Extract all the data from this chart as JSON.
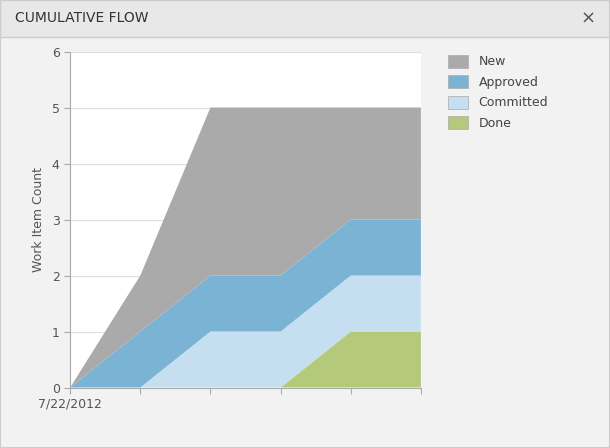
{
  "title": "CUMULATIVE FLOW",
  "ylabel": "Work Item Count",
  "xlabel_date": "7/22/2012",
  "background_color": "#f2f2f2",
  "panel_background": "#ffffff",
  "border_color": "#cccccc",
  "x_points": [
    0,
    1,
    2,
    3,
    4,
    5
  ],
  "done": [
    0,
    0,
    0,
    0,
    1,
    1
  ],
  "committed": [
    0,
    0,
    1,
    1,
    2,
    2
  ],
  "approved": [
    0,
    1,
    2,
    2,
    3,
    3
  ],
  "new_total": [
    0,
    2,
    5,
    5,
    5,
    5
  ],
  "color_new": "#aaaaaa",
  "color_approved": "#7bb3d4",
  "color_committed": "#c5dff0",
  "color_done": "#b5c97a",
  "ylim": [
    0,
    6
  ],
  "yticks": [
    0,
    1,
    2,
    3,
    4,
    5,
    6
  ],
  "legend_labels": [
    "New",
    "Approved",
    "Committed",
    "Done"
  ],
  "title_fontsize": 10,
  "axis_label_fontsize": 9,
  "tick_fontsize": 9
}
